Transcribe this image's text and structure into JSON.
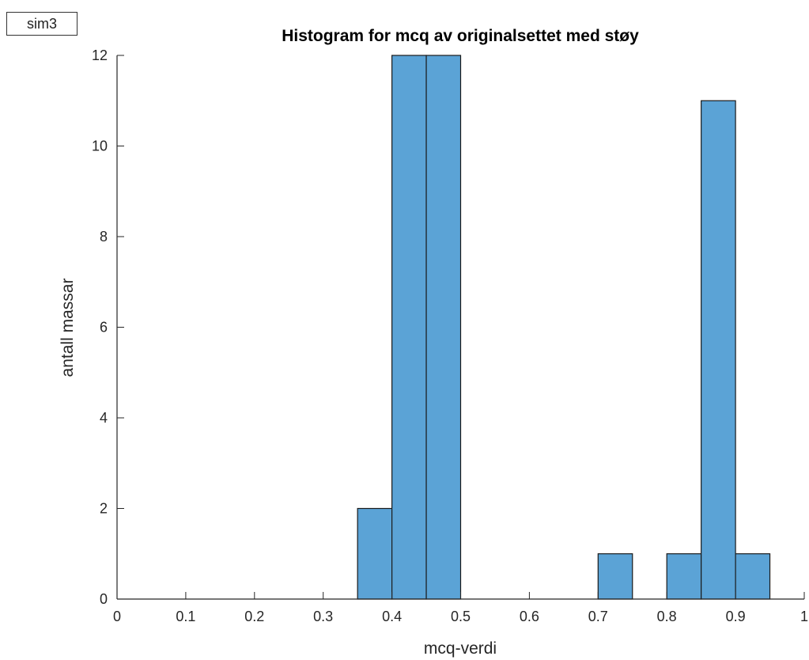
{
  "tag_label": "sim3",
  "chart_data": {
    "type": "bar",
    "title": "Histogram for mcq av originalsettet med støy",
    "xlabel": "mcq-verdi",
    "ylabel": "antall massar",
    "xlim": [
      0,
      1
    ],
    "ylim": [
      0,
      12
    ],
    "x_ticks": [
      "0",
      "0.1",
      "0.2",
      "0.3",
      "0.4",
      "0.5",
      "0.6",
      "0.7",
      "0.8",
      "0.9",
      "1"
    ],
    "y_ticks": [
      "0",
      "2",
      "4",
      "6",
      "8",
      "10",
      "12"
    ],
    "bin_edges": [
      0.35,
      0.4,
      0.45,
      0.5,
      0.55,
      0.6,
      0.65,
      0.7,
      0.75,
      0.8,
      0.85,
      0.9,
      0.95
    ],
    "values": [
      2,
      12,
      12,
      0,
      0,
      0,
      0,
      1,
      0,
      1,
      11,
      1
    ],
    "bar_color": "#5ba3d6",
    "grid": false
  }
}
